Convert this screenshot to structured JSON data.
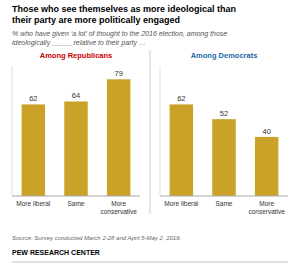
{
  "chart_data": {
    "type": "bar",
    "title": "Those who see themselves as more ideological than\ntheir party are more politically engaged",
    "subtitle": "% who have given ‘a lot’ of thought to the 2016 election, among those\nideologically _____ relative to their party …",
    "categories": [
      "More liberal",
      "Same",
      "More\nconservative"
    ],
    "series": [
      {
        "name": "Among Republicans",
        "color": "#CC0000",
        "values": [
          62,
          64,
          79
        ]
      },
      {
        "name": "Among Democrats",
        "color": "#2266AA",
        "values": [
          62,
          52,
          40
        ]
      }
    ],
    "color": "#C9A227",
    "ylim": [
      0,
      88
    ],
    "data_labels": true,
    "tick_labels": "x",
    "grid": false,
    "annotations": [
      "Source: Survey conducted March 2-28 and April 5-May 2, 2016.",
      "PEW RESEARCH CENTER"
    ]
  }
}
